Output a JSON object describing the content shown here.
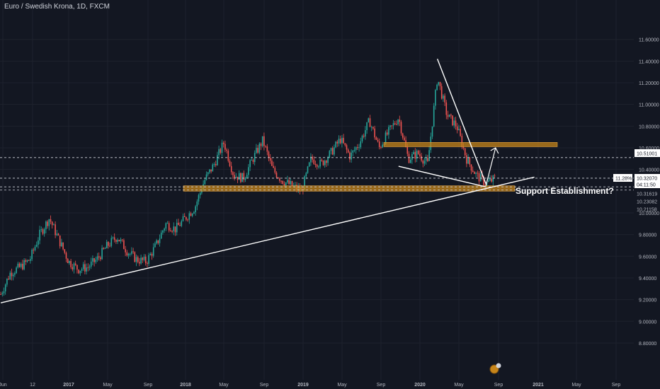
{
  "title": "Euro / Swedish Krona, 1D, FXCM",
  "colors": {
    "background": "#131722",
    "grid": "#1e222d",
    "up": "#26a69a",
    "down": "#ef5350",
    "axis_text": "#b2b5be",
    "drawing": "#ffffff",
    "zone": "#c7851a"
  },
  "chart_data": {
    "type": "candlestick",
    "ylim": [
      8.7,
      11.7
    ],
    "y_ticks": [
      "11.60000",
      "11.40000",
      "11.20000",
      "11.00000",
      "10.80000",
      "10.60000",
      "10.40000",
      "10.00000",
      "9.80000",
      "9.60000",
      "9.40000",
      "9.20000",
      "9.00000",
      "8.80000"
    ],
    "x_ticks": [
      "Jun",
      "12",
      "2017",
      "May",
      "Sep",
      "2018",
      "May",
      "Sep",
      "2019",
      "May",
      "Sep",
      "2020",
      "May",
      "Sep",
      "2021",
      "May",
      "Sep"
    ],
    "price_labels": [
      {
        "value": "10.51001",
        "style": "white-box"
      },
      {
        "value": "10.32070",
        "style": "white-box"
      },
      {
        "value": "04:11:50",
        "style": "white-box"
      },
      {
        "value": "10.31619",
        "style": "plain"
      },
      {
        "value": "10.23082",
        "style": "plain"
      },
      {
        "value": "10.21158",
        "style": "plain"
      }
    ],
    "percent_label": "11.28%",
    "annotation": "Support Establishment?",
    "dashed_levels": [
      10.51,
      10.32,
      10.24,
      10.21
    ],
    "zones": [
      {
        "name": "resistance-zone",
        "y_low": 10.61,
        "y_high": 10.65
      },
      {
        "name": "support-zone",
        "y_low": 10.2,
        "y_high": 10.25
      }
    ],
    "trendlines": [
      {
        "name": "long-term-uptrend",
        "x1": "2016-06",
        "y1": 9.17,
        "x2": "2021-01",
        "y2": 10.33
      },
      {
        "name": "down-trendline",
        "x1": "2020-03",
        "y1": 11.42,
        "x2": "2020-08",
        "y2": 10.27
      },
      {
        "name": "wedge-lower-line",
        "x1": "2019-11",
        "y1": 10.43,
        "x2": "2020-08",
        "y2": 10.24
      }
    ],
    "arrow": {
      "from_x": "2020-08",
      "from_y": 10.25,
      "to_x": "2020-09",
      "to_y": 10.6
    },
    "price_path": [
      [
        "2016-06",
        9.25
      ],
      [
        "2016-07",
        9.45
      ],
      [
        "2016-08",
        9.5
      ],
      [
        "2016-09",
        9.57
      ],
      [
        "2016-10",
        9.8
      ],
      [
        "2016-11",
        9.95
      ],
      [
        "2016-12",
        9.75
      ],
      [
        "2017-01",
        9.55
      ],
      [
        "2017-02",
        9.48
      ],
      [
        "2017-03",
        9.5
      ],
      [
        "2017-04",
        9.58
      ],
      [
        "2017-05",
        9.7
      ],
      [
        "2017-06",
        9.78
      ],
      [
        "2017-07",
        9.65
      ],
      [
        "2017-08",
        9.57
      ],
      [
        "2017-09",
        9.55
      ],
      [
        "2017-10",
        9.7
      ],
      [
        "2017-11",
        9.9
      ],
      [
        "2017-12",
        9.85
      ],
      [
        "2018-01",
        9.95
      ],
      [
        "2018-02",
        10.05
      ],
      [
        "2018-03",
        10.3
      ],
      [
        "2018-04",
        10.45
      ],
      [
        "2018-05",
        10.65
      ],
      [
        "2018-06",
        10.35
      ],
      [
        "2018-07",
        10.32
      ],
      [
        "2018-08",
        10.5
      ],
      [
        "2018-09",
        10.67
      ],
      [
        "2018-10",
        10.4
      ],
      [
        "2018-11",
        10.3
      ],
      [
        "2018-12",
        10.25
      ],
      [
        "2019-01",
        10.2
      ],
      [
        "2019-02",
        10.5
      ],
      [
        "2019-03",
        10.45
      ],
      [
        "2019-04",
        10.55
      ],
      [
        "2019-05",
        10.68
      ],
      [
        "2019-06",
        10.52
      ],
      [
        "2019-07",
        10.65
      ],
      [
        "2019-08",
        10.85
      ],
      [
        "2019-09",
        10.6
      ],
      [
        "2019-10",
        10.75
      ],
      [
        "2019-11",
        10.88
      ],
      [
        "2019-12",
        10.5
      ],
      [
        "2020-01",
        10.55
      ],
      [
        "2020-02",
        10.45
      ],
      [
        "2020-03",
        11.25
      ],
      [
        "2020-04",
        10.9
      ],
      [
        "2020-05",
        10.8
      ],
      [
        "2020-06",
        10.5
      ],
      [
        "2020-07",
        10.35
      ],
      [
        "2020-08",
        10.27
      ],
      [
        "2020-09",
        10.32
      ]
    ]
  }
}
